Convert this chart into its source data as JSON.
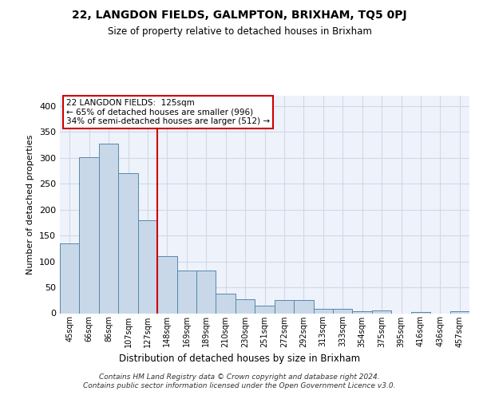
{
  "title": "22, LANGDON FIELDS, GALMPTON, BRIXHAM, TQ5 0PJ",
  "subtitle": "Size of property relative to detached houses in Brixham",
  "xlabel": "Distribution of detached houses by size in Brixham",
  "ylabel": "Number of detached properties",
  "categories": [
    "45sqm",
    "66sqm",
    "86sqm",
    "107sqm",
    "127sqm",
    "148sqm",
    "169sqm",
    "189sqm",
    "210sqm",
    "230sqm",
    "251sqm",
    "272sqm",
    "292sqm",
    "313sqm",
    "333sqm",
    "354sqm",
    "375sqm",
    "395sqm",
    "416sqm",
    "436sqm",
    "457sqm"
  ],
  "values": [
    135,
    301,
    327,
    270,
    180,
    110,
    82,
    82,
    38,
    27,
    15,
    26,
    26,
    9,
    9,
    4,
    5,
    0,
    3,
    0,
    4
  ],
  "bar_color": "#c8d8e8",
  "bar_edge_color": "#5588aa",
  "grid_color": "#d0d8e8",
  "background_color": "#eef2fa",
  "vline_x": 4.5,
  "vline_color": "#cc0000",
  "annotation_text": "22 LANGDON FIELDS:  125sqm\n← 65% of detached houses are smaller (996)\n34% of semi-detached houses are larger (512) →",
  "annotation_box_color": "#ffffff",
  "annotation_box_edge": "#cc0000",
  "footer": "Contains HM Land Registry data © Crown copyright and database right 2024.\nContains public sector information licensed under the Open Government Licence v3.0.",
  "ylim": [
    0,
    420
  ],
  "yticks": [
    0,
    50,
    100,
    150,
    200,
    250,
    300,
    350,
    400
  ]
}
